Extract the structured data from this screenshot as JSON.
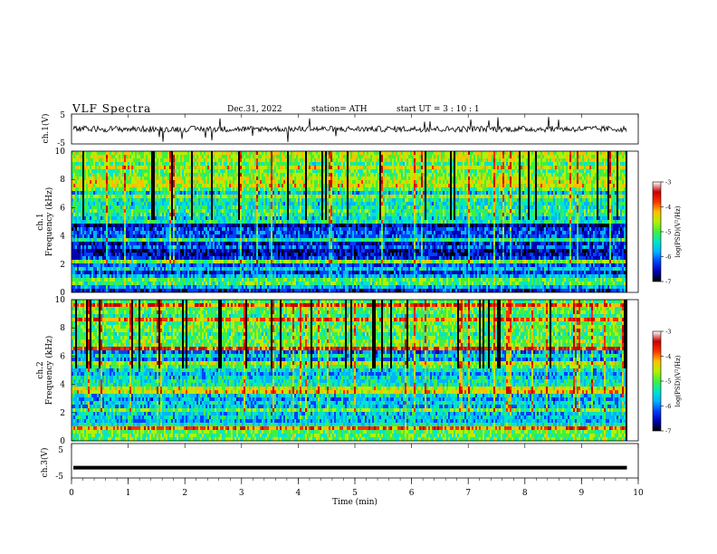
{
  "header": {
    "title": "VLF  Spectra",
    "date": "Dec.31, 2022",
    "station": "station= ATH",
    "start_ut": "start  UT  =    3  : 10 : 1"
  },
  "chart_data": [
    {
      "type": "line",
      "panel": "ch1-waveform",
      "ylabel": "ch.1(V)",
      "ylim": [
        -5,
        5
      ],
      "yticks": [
        "5",
        "-5"
      ],
      "description_values": {
        "baseline_V": 0.0,
        "noise_amplitude_V": 1.0,
        "spike_peaks_V": 4.5
      },
      "xlim": [
        0,
        9.8
      ]
    },
    {
      "type": "heatmap",
      "panel": "ch1-spectrogram",
      "ylabel": "ch.1\nFrequency  (kHz)",
      "ylim": [
        0,
        10
      ],
      "yticks": [
        "0",
        "2",
        "4",
        "6",
        "8",
        "10"
      ],
      "colorbar": {
        "label": "log(PSD)(V²/Hz)",
        "range": [
          -7,
          -3
        ],
        "ticks": [
          "-3",
          "-4",
          "-5",
          "-6",
          "-7"
        ]
      },
      "bands_kHz": [
        {
          "low": 0.0,
          "high": 0.6,
          "level": -6.3
        },
        {
          "low": 0.6,
          "high": 1.0,
          "level": -4.6
        },
        {
          "low": 1.0,
          "high": 2.0,
          "level": -5.8
        },
        {
          "low": 2.0,
          "high": 2.3,
          "level": -4.8
        },
        {
          "low": 2.3,
          "high": 5.0,
          "level": -6.2
        },
        {
          "low": 5.0,
          "high": 7.2,
          "level": -5.2
        },
        {
          "low": 7.2,
          "high": 10.0,
          "level": -4.6
        }
      ]
    },
    {
      "type": "heatmap",
      "panel": "ch2-spectrogram",
      "ylabel": "ch.2\nFrequency  (kHz)",
      "ylim": [
        0,
        10
      ],
      "yticks": [
        "0",
        "2",
        "4",
        "6",
        "8",
        "10"
      ],
      "colorbar": {
        "label": "log(PSD)(V²/Hz)",
        "range": [
          -7,
          -3
        ],
        "ticks": [
          "-3",
          "-4",
          "-5",
          "-6",
          "-7"
        ]
      },
      "bands_kHz": [
        {
          "low": 0.0,
          "high": 1.0,
          "level": -5.0
        },
        {
          "low": 1.0,
          "high": 2.0,
          "level": -5.3
        },
        {
          "low": 2.0,
          "high": 2.4,
          "level": -4.7
        },
        {
          "low": 2.4,
          "high": 4.5,
          "level": -5.4
        },
        {
          "low": 4.5,
          "high": 6.5,
          "level": -5.6
        },
        {
          "low": 6.5,
          "high": 10.0,
          "level": -4.7
        }
      ]
    },
    {
      "type": "line",
      "panel": "ch3-waveform",
      "ylabel": "ch.3(V)",
      "ylim": [
        -5,
        5
      ],
      "yticks": [
        "5",
        "-5"
      ],
      "description_values": {
        "constant_level_V": -2.0
      },
      "xlim": [
        0,
        9.8
      ]
    }
  ],
  "x_axis": {
    "label": "Time  (min)",
    "range": [
      0,
      10
    ],
    "ticks": [
      "0",
      "1",
      "2",
      "3",
      "4",
      "5",
      "6",
      "7",
      "8",
      "9",
      "10"
    ]
  },
  "colors": {
    "colormap": [
      "#000000",
      "#0000b4",
      "#0040ff",
      "#00b4ff",
      "#00e6c8",
      "#40f040",
      "#b4f000",
      "#ffc000",
      "#ff3000",
      "#c80000",
      "#ffffff"
    ]
  }
}
